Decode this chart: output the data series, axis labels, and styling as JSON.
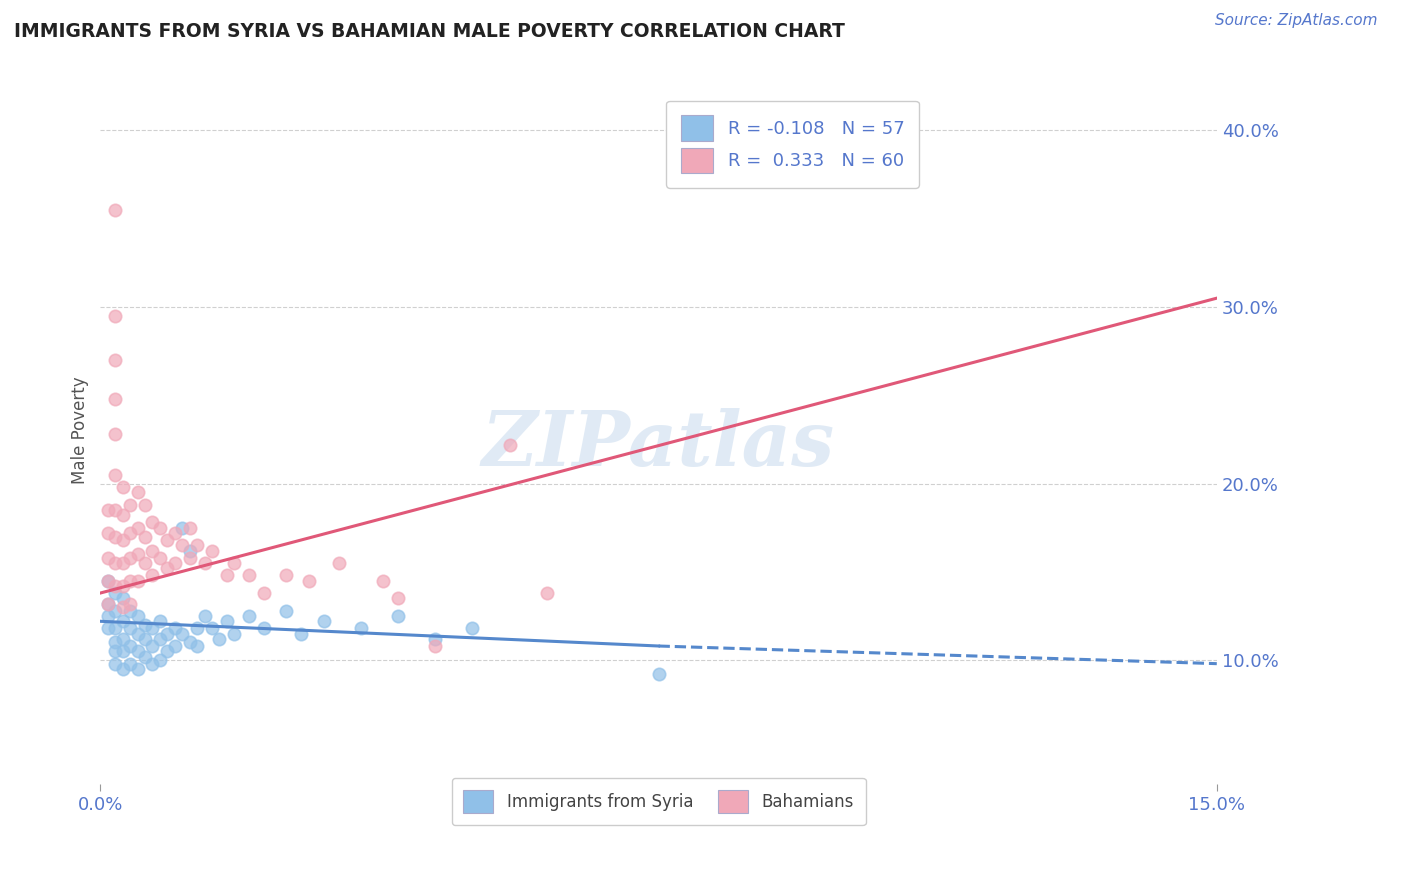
{
  "title": "IMMIGRANTS FROM SYRIA VS BAHAMIAN MALE POVERTY CORRELATION CHART",
  "source_text": "Source: ZipAtlas.com",
  "ylabel": "Male Poverty",
  "x_min": 0.0,
  "x_max": 0.15,
  "y_min": 0.03,
  "y_max": 0.43,
  "y_ticks": [
    0.1,
    0.2,
    0.3,
    0.4
  ],
  "y_tick_labels": [
    "10.0%",
    "20.0%",
    "30.0%",
    "40.0%"
  ],
  "x_ticks": [
    0.0,
    0.15
  ],
  "x_tick_labels": [
    "0.0%",
    "15.0%"
  ],
  "color_blue": "#90c0e8",
  "color_pink": "#f0a8b8",
  "color_blue_line": "#5588cc",
  "color_pink_line": "#e05878",
  "color_axis_text": "#5577cc",
  "legend_r_blue": "-0.108",
  "legend_n_blue": "57",
  "legend_r_pink": "0.333",
  "legend_n_pink": "60",
  "legend_label_blue": "Immigrants from Syria",
  "legend_label_pink": "Bahamians",
  "watermark": "ZIPatlas",
  "grid_color": "#d0d0d0",
  "background_color": "#ffffff",
  "blue_solid_line": [
    [
      0.0,
      0.122
    ],
    [
      0.075,
      0.108
    ]
  ],
  "blue_dashed_line": [
    [
      0.075,
      0.108
    ],
    [
      0.15,
      0.098
    ]
  ],
  "pink_line": [
    [
      0.0,
      0.138
    ],
    [
      0.15,
      0.305
    ]
  ],
  "blue_scatter": [
    [
      0.001,
      0.145
    ],
    [
      0.001,
      0.132
    ],
    [
      0.001,
      0.125
    ],
    [
      0.001,
      0.118
    ],
    [
      0.002,
      0.138
    ],
    [
      0.002,
      0.128
    ],
    [
      0.002,
      0.118
    ],
    [
      0.002,
      0.11
    ],
    [
      0.002,
      0.105
    ],
    [
      0.002,
      0.098
    ],
    [
      0.003,
      0.135
    ],
    [
      0.003,
      0.122
    ],
    [
      0.003,
      0.112
    ],
    [
      0.003,
      0.105
    ],
    [
      0.003,
      0.095
    ],
    [
      0.004,
      0.128
    ],
    [
      0.004,
      0.118
    ],
    [
      0.004,
      0.108
    ],
    [
      0.004,
      0.098
    ],
    [
      0.005,
      0.125
    ],
    [
      0.005,
      0.115
    ],
    [
      0.005,
      0.105
    ],
    [
      0.005,
      0.095
    ],
    [
      0.006,
      0.12
    ],
    [
      0.006,
      0.112
    ],
    [
      0.006,
      0.102
    ],
    [
      0.007,
      0.118
    ],
    [
      0.007,
      0.108
    ],
    [
      0.007,
      0.098
    ],
    [
      0.008,
      0.122
    ],
    [
      0.008,
      0.112
    ],
    [
      0.008,
      0.1
    ],
    [
      0.009,
      0.115
    ],
    [
      0.009,
      0.105
    ],
    [
      0.01,
      0.118
    ],
    [
      0.01,
      0.108
    ],
    [
      0.011,
      0.175
    ],
    [
      0.011,
      0.115
    ],
    [
      0.012,
      0.162
    ],
    [
      0.012,
      0.11
    ],
    [
      0.013,
      0.118
    ],
    [
      0.013,
      0.108
    ],
    [
      0.014,
      0.125
    ],
    [
      0.015,
      0.118
    ],
    [
      0.016,
      0.112
    ],
    [
      0.017,
      0.122
    ],
    [
      0.018,
      0.115
    ],
    [
      0.02,
      0.125
    ],
    [
      0.022,
      0.118
    ],
    [
      0.025,
      0.128
    ],
    [
      0.027,
      0.115
    ],
    [
      0.03,
      0.122
    ],
    [
      0.035,
      0.118
    ],
    [
      0.04,
      0.125
    ],
    [
      0.045,
      0.112
    ],
    [
      0.05,
      0.118
    ],
    [
      0.075,
      0.092
    ]
  ],
  "pink_scatter": [
    [
      0.001,
      0.185
    ],
    [
      0.001,
      0.172
    ],
    [
      0.001,
      0.158
    ],
    [
      0.001,
      0.145
    ],
    [
      0.001,
      0.132
    ],
    [
      0.002,
      0.355
    ],
    [
      0.002,
      0.295
    ],
    [
      0.002,
      0.27
    ],
    [
      0.002,
      0.248
    ],
    [
      0.002,
      0.228
    ],
    [
      0.002,
      0.205
    ],
    [
      0.002,
      0.185
    ],
    [
      0.002,
      0.17
    ],
    [
      0.002,
      0.155
    ],
    [
      0.002,
      0.142
    ],
    [
      0.003,
      0.198
    ],
    [
      0.003,
      0.182
    ],
    [
      0.003,
      0.168
    ],
    [
      0.003,
      0.155
    ],
    [
      0.003,
      0.142
    ],
    [
      0.003,
      0.13
    ],
    [
      0.004,
      0.188
    ],
    [
      0.004,
      0.172
    ],
    [
      0.004,
      0.158
    ],
    [
      0.004,
      0.145
    ],
    [
      0.004,
      0.132
    ],
    [
      0.005,
      0.195
    ],
    [
      0.005,
      0.175
    ],
    [
      0.005,
      0.16
    ],
    [
      0.005,
      0.145
    ],
    [
      0.006,
      0.188
    ],
    [
      0.006,
      0.17
    ],
    [
      0.006,
      0.155
    ],
    [
      0.007,
      0.178
    ],
    [
      0.007,
      0.162
    ],
    [
      0.007,
      0.148
    ],
    [
      0.008,
      0.175
    ],
    [
      0.008,
      0.158
    ],
    [
      0.009,
      0.168
    ],
    [
      0.009,
      0.152
    ],
    [
      0.01,
      0.172
    ],
    [
      0.01,
      0.155
    ],
    [
      0.011,
      0.165
    ],
    [
      0.012,
      0.175
    ],
    [
      0.012,
      0.158
    ],
    [
      0.013,
      0.165
    ],
    [
      0.014,
      0.155
    ],
    [
      0.015,
      0.162
    ],
    [
      0.017,
      0.148
    ],
    [
      0.018,
      0.155
    ],
    [
      0.02,
      0.148
    ],
    [
      0.022,
      0.138
    ],
    [
      0.025,
      0.148
    ],
    [
      0.028,
      0.145
    ],
    [
      0.032,
      0.155
    ],
    [
      0.038,
      0.145
    ],
    [
      0.04,
      0.135
    ],
    [
      0.045,
      0.108
    ],
    [
      0.055,
      0.222
    ],
    [
      0.06,
      0.138
    ]
  ]
}
